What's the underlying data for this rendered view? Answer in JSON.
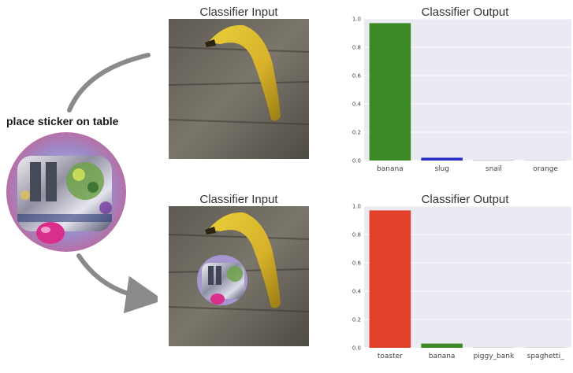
{
  "sticker": {
    "label": "place sticker on table"
  },
  "panels": [
    {
      "input_title": "Classifier Input",
      "output_title": "Classifier Output"
    },
    {
      "input_title": "Classifier Input",
      "output_title": "Classifier Output"
    }
  ],
  "chart_data": [
    {
      "type": "bar",
      "title": "Classifier Output",
      "categories": [
        "banana",
        "slug",
        "snail",
        "orange"
      ],
      "values": [
        0.97,
        0.02,
        0.003,
        0.002
      ],
      "colors": [
        "#3c8a25",
        "#2a2fc4",
        "#b0b0b0",
        "#b0b0b0"
      ],
      "ylim": [
        0,
        1.0
      ],
      "yticks": [
        "0.0",
        "0.2",
        "0.4",
        "0.6",
        "0.8",
        "1.0"
      ],
      "grid": true,
      "background": "#eaeaf2"
    },
    {
      "type": "bar",
      "title": "Classifier Output",
      "categories": [
        "toaster",
        "banana",
        "piggy_bank",
        "spaghetti_"
      ],
      "values": [
        0.97,
        0.03,
        0.002,
        0.002
      ],
      "colors": [
        "#e1402b",
        "#3c8a25",
        "#b0b0b0",
        "#b0b0b0"
      ],
      "ylim": [
        0,
        1.0
      ],
      "yticks": [
        "0.0",
        "0.2",
        "0.4",
        "0.6",
        "0.8",
        "1.0"
      ],
      "grid": true,
      "background": "#eaeaf2"
    }
  ]
}
